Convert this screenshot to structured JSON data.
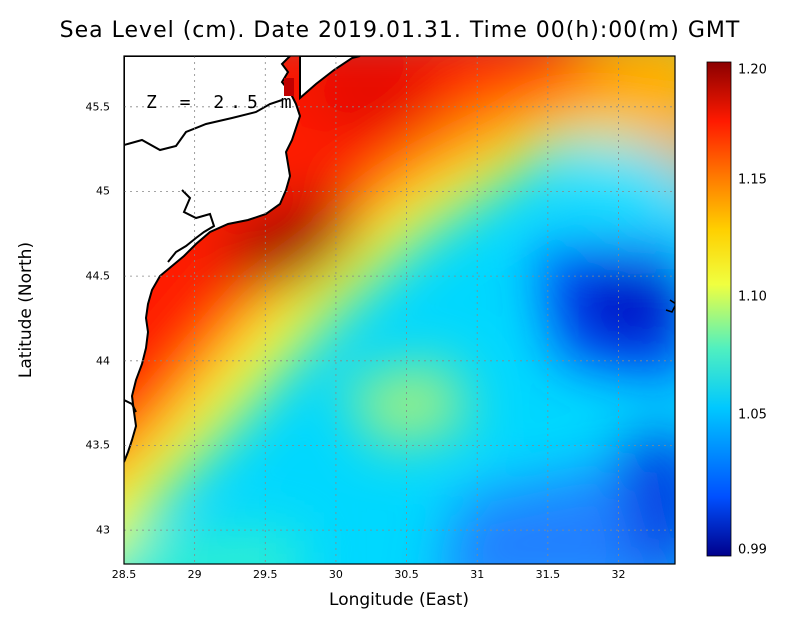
{
  "title": "Sea Level (cm). Date 2019.01.31. Time 00(h):00(m) GMT",
  "depth_annotation": "Z = 2.5 m",
  "x_axis": {
    "label": "Longitude (East)",
    "ticks": [
      "28.5",
      "29",
      "29.5",
      "30",
      "30.5",
      "31",
      "31.5",
      "32"
    ],
    "range": [
      28.5,
      32.4
    ]
  },
  "y_axis": {
    "label": "Latitude (North)",
    "ticks": [
      "43",
      "43.5",
      "44",
      "44.5",
      "45",
      "45.5"
    ],
    "range": [
      42.8,
      45.8
    ]
  },
  "colorbar": {
    "ticks": [
      "1.20",
      "1.15",
      "1.10",
      "1.05",
      "0.99"
    ],
    "range": [
      0.99,
      1.2
    ],
    "colors": [
      "#00008b",
      "#0050ff",
      "#00c8ff",
      "#50f0c0",
      "#f0ff40",
      "#ffd000",
      "#ff8000",
      "#ff1a00",
      "#8b0000"
    ]
  },
  "grid": "dotted",
  "coastline_color": "#000000",
  "land_color": "#ffffff"
}
